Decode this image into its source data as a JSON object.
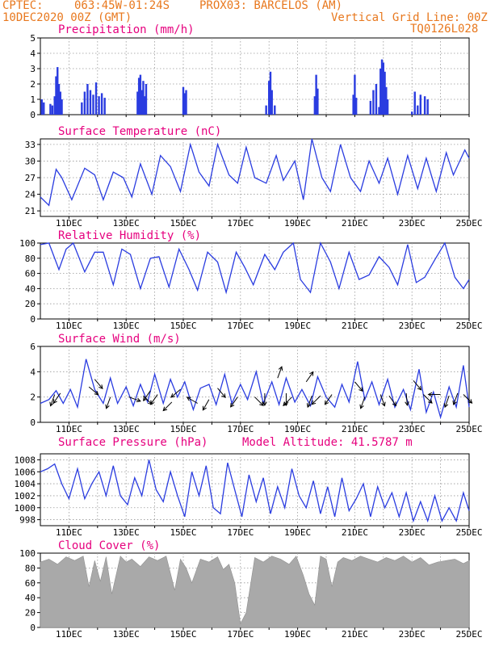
{
  "header": {
    "source": "CPTEC:",
    "coords": "063:45W-01:24S",
    "station": "PROX03: BARCELOS (AM)",
    "datetime": "10DEC2020 00Z (GMT)",
    "grid_note": "Vertical Grid Line: 00Z",
    "code": "TQ0126L028",
    "text_color": "#e8781e"
  },
  "colors": {
    "title": "#e6007e",
    "series": "#2a3ce0",
    "cloud": "#a9a9a9",
    "grid": "#999999"
  },
  "x_axis": {
    "start_day": 10,
    "end_day": 25,
    "tick_labels": [
      "11DEC",
      "13DEC",
      "15DEC",
      "17DEC",
      "19DEC",
      "21DEC",
      "23DEC",
      "25DEC"
    ]
  },
  "chart_data": [
    {
      "id": "precip",
      "type": "bar",
      "title": "Precipitation (mm/h)",
      "ylim": [
        0,
        5
      ],
      "yticks": [
        "0",
        "1",
        "2",
        "3",
        "4",
        "5"
      ],
      "x_unit": "day",
      "x": [
        10.05,
        10.12,
        10.35,
        10.42,
        10.5,
        10.55,
        10.6,
        10.65,
        10.7,
        10.75,
        11.45,
        11.55,
        11.65,
        11.75,
        11.85,
        11.95,
        12.05,
        12.15,
        12.25,
        13.4,
        13.45,
        13.5,
        13.55,
        13.6,
        13.65,
        13.7,
        15.0,
        15.05,
        15.1,
        17.9,
        18.0,
        18.05,
        18.1,
        18.2,
        19.6,
        19.65,
        19.7,
        20.95,
        21.0,
        21.05,
        21.55,
        21.65,
        21.75,
        21.85,
        21.9,
        21.95,
        22.0,
        22.05,
        22.1,
        22.15,
        23.0,
        23.1,
        23.2,
        23.3,
        23.45,
        23.55
      ],
      "values": [
        1.0,
        0.8,
        0.7,
        0.6,
        1.2,
        2.5,
        3.1,
        2.0,
        1.5,
        1.0,
        0.8,
        1.5,
        2.0,
        1.6,
        1.3,
        2.1,
        1.2,
        1.4,
        1.1,
        1.5,
        2.4,
        2.6,
        1.6,
        2.2,
        1.2,
        2.0,
        1.8,
        1.4,
        1.6,
        0.6,
        2.2,
        2.8,
        1.6,
        0.6,
        1.2,
        2.6,
        1.7,
        1.3,
        2.6,
        1.1,
        0.9,
        1.6,
        2.0,
        0.5,
        3.0,
        3.6,
        3.4,
        2.8,
        1.8,
        1.0,
        0.2,
        1.5,
        0.6,
        1.3,
        1.2,
        1.0
      ]
    },
    {
      "id": "temp",
      "type": "line",
      "title": "Surface Temperature (nC)",
      "ylim": [
        20,
        34
      ],
      "yticks": [
        "21",
        "24",
        "27",
        "30",
        "33"
      ],
      "x_unit": "day",
      "x": [
        10,
        10.3,
        10.55,
        10.75,
        11.1,
        11.55,
        11.9,
        12.2,
        12.55,
        12.9,
        13.2,
        13.5,
        13.9,
        14.2,
        14.55,
        14.9,
        15.25,
        15.55,
        15.9,
        16.2,
        16.6,
        16.9,
        17.2,
        17.5,
        17.9,
        18.25,
        18.5,
        18.9,
        19.2,
        19.5,
        19.85,
        20.15,
        20.5,
        20.85,
        21.2,
        21.5,
        21.85,
        22.15,
        22.5,
        22.85,
        23.2,
        23.5,
        23.85,
        24.2,
        24.45,
        24.85,
        25
      ],
      "values": [
        23.5,
        22.0,
        28.5,
        27.0,
        23.0,
        28.7,
        27.5,
        23.0,
        28.0,
        27.0,
        23.5,
        29.5,
        24.0,
        31.0,
        29.0,
        24.5,
        33.0,
        28.0,
        25.5,
        33.0,
        27.5,
        26.0,
        32.5,
        27.0,
        26.0,
        31.0,
        26.5,
        30.0,
        23.0,
        34.0,
        27.0,
        24.5,
        33.0,
        27.0,
        24.5,
        30.0,
        26.0,
        30.5,
        24.0,
        31.0,
        25.0,
        30.5,
        24.5,
        31.5,
        27.5,
        32.0,
        30.5
      ]
    },
    {
      "id": "rh",
      "type": "line",
      "title": "Relative Humidity (%)",
      "ylim": [
        0,
        100
      ],
      "yticks": [
        "0",
        "20",
        "40",
        "60",
        "80",
        "100"
      ],
      "x_unit": "day",
      "x": [
        10,
        10.3,
        10.65,
        10.9,
        11.15,
        11.55,
        11.9,
        12.2,
        12.55,
        12.85,
        13.15,
        13.5,
        13.85,
        14.15,
        14.5,
        14.85,
        15.2,
        15.5,
        15.85,
        16.2,
        16.5,
        16.85,
        17.15,
        17.45,
        17.85,
        18.2,
        18.5,
        18.85,
        19.1,
        19.45,
        19.8,
        20.15,
        20.45,
        20.8,
        21.15,
        21.5,
        21.85,
        22.2,
        22.5,
        22.85,
        23.15,
        23.45,
        23.8,
        24.15,
        24.5,
        24.8,
        25
      ],
      "values": [
        98,
        100,
        65,
        92,
        100,
        62,
        88,
        88,
        45,
        92,
        85,
        40,
        80,
        82,
        42,
        92,
        65,
        38,
        88,
        75,
        35,
        88,
        68,
        45,
        85,
        65,
        88,
        100,
        52,
        35,
        100,
        75,
        40,
        88,
        52,
        58,
        82,
        68,
        45,
        98,
        48,
        55,
        78,
        100,
        55,
        40,
        52
      ]
    },
    {
      "id": "wind",
      "type": "line",
      "title": "Surface Wind (m/s)",
      "ylim": [
        0,
        6
      ],
      "yticks": [
        "0",
        "2",
        "4",
        "6"
      ],
      "x_unit": "day",
      "x": [
        10,
        10.3,
        10.55,
        10.8,
        11.05,
        11.3,
        11.6,
        11.9,
        12.2,
        12.45,
        12.7,
        13.0,
        13.25,
        13.5,
        13.75,
        14.0,
        14.3,
        14.55,
        14.8,
        15.05,
        15.35,
        15.6,
        15.9,
        16.15,
        16.45,
        16.7,
        17.0,
        17.25,
        17.55,
        17.8,
        18.1,
        18.35,
        18.6,
        18.9,
        19.15,
        19.45,
        19.7,
        20.0,
        20.3,
        20.55,
        20.8,
        21.1,
        21.35,
        21.6,
        21.85,
        22.15,
        22.4,
        22.7,
        22.95,
        23.25,
        23.5,
        23.75,
        24.0,
        24.3,
        24.55,
        24.8,
        25
      ],
      "values": [
        1.5,
        1.8,
        2.5,
        1.5,
        2.6,
        1.2,
        5.0,
        2.6,
        1.5,
        3.5,
        1.5,
        2.8,
        1.3,
        3.0,
        1.6,
        3.8,
        1.5,
        3.4,
        2.0,
        3.2,
        1.0,
        2.7,
        3.0,
        1.4,
        3.8,
        1.5,
        3.0,
        1.8,
        4.0,
        1.5,
        3.2,
        1.4,
        3.5,
        1.6,
        2.6,
        1.3,
        3.6,
        2.0,
        1.2,
        3.0,
        1.6,
        4.8,
        1.8,
        3.2,
        1.4,
        3.4,
        1.2,
        2.6,
        1.0,
        4.2,
        0.8,
        2.4,
        0.4,
        2.8,
        1.2,
        4.5,
        1.2
      ],
      "arrows": [
        {
          "day": 10.5,
          "speed": 2.2,
          "dir_deg": 200
        },
        {
          "day": 10.7,
          "speed": 2.3,
          "dir_deg": 215
        },
        {
          "day": 11.7,
          "speed": 2.8,
          "dir_deg": 130
        },
        {
          "day": 11.9,
          "speed": 3.4,
          "dir_deg": 140
        },
        {
          "day": 12.45,
          "speed": 2.0,
          "dir_deg": 200
        },
        {
          "day": 13.1,
          "speed": 2.0,
          "dir_deg": 110
        },
        {
          "day": 13.6,
          "speed": 2.1,
          "dir_deg": 135
        },
        {
          "day": 13.85,
          "speed": 2.5,
          "dir_deg": 215
        },
        {
          "day": 14.1,
          "speed": 2.2,
          "dir_deg": 215
        },
        {
          "day": 14.6,
          "speed": 1.6,
          "dir_deg": 225
        },
        {
          "day": 14.9,
          "speed": 2.6,
          "dir_deg": 230
        },
        {
          "day": 15.5,
          "speed": 1.5,
          "dir_deg": 300
        },
        {
          "day": 15.9,
          "speed": 1.8,
          "dir_deg": 210
        },
        {
          "day": 16.2,
          "speed": 2.7,
          "dir_deg": 140
        },
        {
          "day": 16.9,
          "speed": 2.0,
          "dir_deg": 215
        },
        {
          "day": 17.5,
          "speed": 2.0,
          "dir_deg": 135
        },
        {
          "day": 17.85,
          "speed": 2.3,
          "dir_deg": 180
        },
        {
          "day": 18.3,
          "speed": 3.5,
          "dir_deg": 20
        },
        {
          "day": 18.6,
          "speed": 2.3,
          "dir_deg": 180
        },
        {
          "day": 18.8,
          "speed": 2.0,
          "dir_deg": 225
        },
        {
          "day": 19.3,
          "speed": 3.2,
          "dir_deg": 35
        },
        {
          "day": 19.5,
          "speed": 2.1,
          "dir_deg": 200
        },
        {
          "day": 19.8,
          "speed": 2.1,
          "dir_deg": 225
        },
        {
          "day": 20.2,
          "speed": 2.2,
          "dir_deg": 215
        },
        {
          "day": 21.0,
          "speed": 3.2,
          "dir_deg": 140
        },
        {
          "day": 21.35,
          "speed": 2.0,
          "dir_deg": 200
        },
        {
          "day": 21.9,
          "speed": 2.2,
          "dir_deg": 160
        },
        {
          "day": 22.2,
          "speed": 2.1,
          "dir_deg": 145
        },
        {
          "day": 22.8,
          "speed": 2.3,
          "dir_deg": 175
        },
        {
          "day": 23.05,
          "speed": 3.3,
          "dir_deg": 140
        },
        {
          "day": 23.4,
          "speed": 2.2,
          "dir_deg": 135
        },
        {
          "day": 24.0,
          "speed": 2.2,
          "dir_deg": 270
        },
        {
          "day": 24.3,
          "speed": 2.1,
          "dir_deg": 200
        },
        {
          "day": 24.6,
          "speed": 2.3,
          "dir_deg": 200
        },
        {
          "day": 24.8,
          "speed": 2.2,
          "dir_deg": 135
        }
      ]
    },
    {
      "id": "pres",
      "type": "line",
      "title": "Surface Pressure (hPa)",
      "subtitle": "Model Altitude: 41.5787 m",
      "ylim": [
        997,
        1009
      ],
      "yticks": [
        "998",
        "1000",
        "1002",
        "1004",
        "1006",
        "1008"
      ],
      "x_unit": "day",
      "x": [
        10,
        10.25,
        10.5,
        10.75,
        11.0,
        11.3,
        11.55,
        11.8,
        12.05,
        12.3,
        12.55,
        12.8,
        13.05,
        13.3,
        13.55,
        13.8,
        14.05,
        14.3,
        14.55,
        14.8,
        15.05,
        15.3,
        15.55,
        15.8,
        16.05,
        16.3,
        16.55,
        16.8,
        17.05,
        17.3,
        17.55,
        17.8,
        18.05,
        18.3,
        18.55,
        18.8,
        19.05,
        19.3,
        19.55,
        19.8,
        20.05,
        20.3,
        20.55,
        20.8,
        21.05,
        21.3,
        21.55,
        21.8,
        22.05,
        22.3,
        22.55,
        22.8,
        23.05,
        23.3,
        23.55,
        23.8,
        24.05,
        24.3,
        24.55,
        24.8,
        25
      ],
      "values": [
        1006,
        1006.5,
        1007.3,
        1004,
        1001.5,
        1006.5,
        1001.5,
        1004,
        1006,
        1002,
        1007,
        1002,
        1000.5,
        1005,
        1002,
        1008,
        1003,
        1001,
        1006,
        1002,
        998.5,
        1006,
        1002,
        1007,
        1000,
        999,
        1007.5,
        1003,
        998.5,
        1005.5,
        1001,
        1005,
        999,
        1003.5,
        1000,
        1006.5,
        1002,
        1000,
        1004.5,
        999,
        1003.5,
        998.5,
        1005,
        999.5,
        1001.5,
        1004,
        998.5,
        1003.5,
        1000,
        1002.5,
        998.5,
        1002.5,
        997.8,
        1001,
        997.8,
        1002,
        997.8,
        1000,
        997.8,
        1002.5,
        999.5
      ]
    },
    {
      "id": "cloud",
      "type": "area",
      "title": "Cloud Cover (%)",
      "ylim": [
        0,
        100
      ],
      "yticks": [
        "0",
        "20",
        "40",
        "60",
        "80",
        "100"
      ],
      "x_unit": "day",
      "x": [
        10,
        10.3,
        10.6,
        10.9,
        11.2,
        11.5,
        11.7,
        11.9,
        12.1,
        12.3,
        12.5,
        12.8,
        13.0,
        13.2,
        13.5,
        13.8,
        14.1,
        14.4,
        14.7,
        14.9,
        15.1,
        15.3,
        15.6,
        15.9,
        16.2,
        16.4,
        16.6,
        16.8,
        17.0,
        17.2,
        17.5,
        17.8,
        18.1,
        18.4,
        18.7,
        18.95,
        19.2,
        19.4,
        19.6,
        19.8,
        20.0,
        20.2,
        20.4,
        20.6,
        20.9,
        21.2,
        21.5,
        21.8,
        22.1,
        22.4,
        22.7,
        23.0,
        23.3,
        23.6,
        23.9,
        24.2,
        24.5,
        24.8,
        25
      ],
      "values": [
        88,
        92,
        85,
        95,
        90,
        96,
        55,
        90,
        62,
        95,
        45,
        96,
        88,
        92,
        82,
        95,
        90,
        96,
        50,
        92,
        80,
        60,
        92,
        88,
        95,
        78,
        85,
        60,
        5,
        20,
        94,
        88,
        96,
        92,
        85,
        96,
        70,
        45,
        30,
        96,
        92,
        55,
        88,
        94,
        90,
        96,
        92,
        88,
        94,
        90,
        96,
        88,
        94,
        84,
        88,
        90,
        92,
        86,
        90
      ]
    }
  ]
}
